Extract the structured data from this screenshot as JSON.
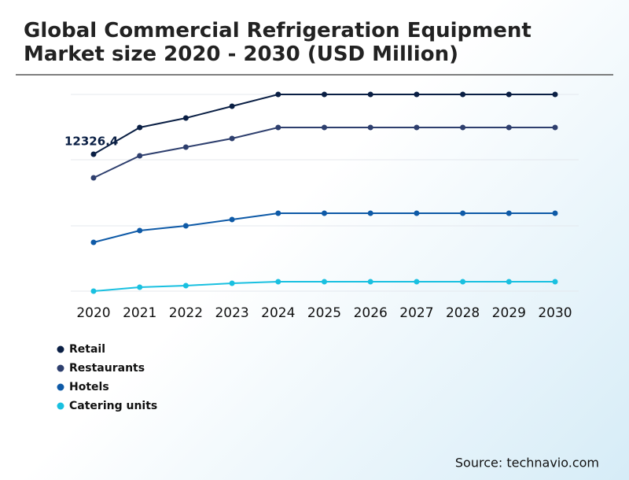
{
  "chart_data": {
    "type": "line",
    "title": "Global Commercial Refrigeration Equipment Market size 2020 - 2030 (USD Million)",
    "x": [
      "2020",
      "2021",
      "2022",
      "2023",
      "2024",
      "2025",
      "2026",
      "2027",
      "2028",
      "2029",
      "2030"
    ],
    "series": [
      {
        "name": "Retail",
        "color": "#0a1f44",
        "values": [
          12326.4,
          14735,
          15585,
          16647,
          17710,
          17710,
          17710,
          17710,
          17710,
          17710,
          17710
        ]
      },
      {
        "name": "Restaurants",
        "color": "#2e3f6e",
        "values": [
          10201,
          12184,
          12964,
          13743,
          14735,
          14735,
          14735,
          14735,
          14735,
          14735,
          14735
        ]
      },
      {
        "name": "Hotels",
        "color": "#0e5aa7",
        "values": [
          4392,
          5455,
          5880,
          6446,
          7013,
          7013,
          7013,
          7013,
          7013,
          7013,
          7013
        ]
      },
      {
        "name": "Catering units",
        "color": "#19c0e0",
        "values": [
          0,
          354,
          496,
          708,
          850,
          850,
          850,
          850,
          850,
          850,
          850
        ]
      }
    ],
    "ylim": [
      0,
      17710
    ],
    "source": "Source: technavio.com"
  }
}
